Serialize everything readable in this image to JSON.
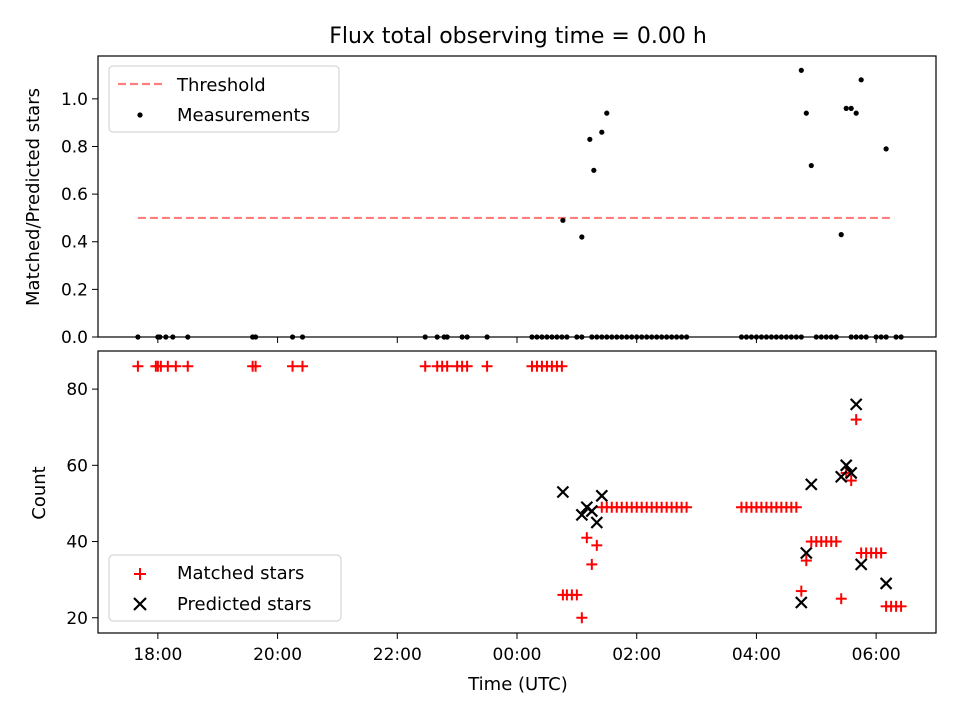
{
  "chart_data": [
    {
      "type": "scatter",
      "title": "Flux total observing time = 0.00 h",
      "xlabel": "",
      "ylabel": "Matched/Predicted stars",
      "xlim": [
        "17:00",
        "07:00"
      ],
      "ylim": [
        0,
        1.18
      ],
      "yticks": [
        "0.0",
        "0.2",
        "0.4",
        "0.6",
        "0.8",
        "1.0"
      ],
      "ytick_values": [
        0,
        0.2,
        0.4,
        0.6,
        0.8,
        1.0
      ],
      "xtick_values": [
        "18:00",
        "20:00",
        "22:00",
        "00:00",
        "02:00",
        "04:00",
        "06:00"
      ],
      "legend": {
        "placement": "upper-left",
        "entries": [
          "Threshold",
          "Measurements"
        ]
      },
      "threshold": {
        "name": "Threshold",
        "value": 0.5,
        "x_range": [
          "17:40",
          "06:18"
        ],
        "color": "#ff7f7f",
        "style": "dashed"
      },
      "series": [
        {
          "name": "Measurements",
          "color": "#000000",
          "marker": "dot",
          "x": [
            "17:40",
            "18:00",
            "18:02",
            "18:08",
            "18:15",
            "18:30",
            "19:35",
            "19:38",
            "20:15",
            "20:25",
            "22:28",
            "22:40",
            "22:47",
            "22:50",
            "23:05",
            "23:10",
            "23:30",
            "00:15",
            "00:20",
            "00:25",
            "00:30",
            "00:35",
            "00:40",
            "00:45",
            "00:50",
            "01:00",
            "01:05",
            "01:15",
            "01:20",
            "01:25",
            "01:30",
            "01:35",
            "01:40",
            "01:45",
            "01:50",
            "01:55",
            "02:00",
            "02:05",
            "02:10",
            "02:15",
            "02:20",
            "02:25",
            "02:30",
            "02:35",
            "02:40",
            "02:45",
            "02:50",
            "03:45",
            "03:50",
            "03:55",
            "04:00",
            "04:05",
            "04:10",
            "04:15",
            "04:20",
            "04:25",
            "04:30",
            "04:35",
            "04:40",
            "04:45",
            "05:00",
            "05:05",
            "05:10",
            "05:15",
            "05:20",
            "05:35",
            "05:40",
            "05:45",
            "05:50",
            "06:00",
            "06:05",
            "06:10",
            "06:20",
            "06:25",
            "00:46",
            "01:05",
            "01:13",
            "01:17",
            "01:25",
            "01:30",
            "04:45",
            "04:50",
            "04:55",
            "05:25",
            "05:30",
            "05:35",
            "05:40",
            "05:45",
            "06:10"
          ],
          "y": [
            0,
            0,
            0,
            0,
            0,
            0,
            0,
            0,
            0,
            0,
            0,
            0,
            0,
            0,
            0,
            0,
            0,
            0,
            0,
            0,
            0,
            0,
            0,
            0,
            0,
            0,
            0,
            0,
            0,
            0,
            0,
            0,
            0,
            0,
            0,
            0,
            0,
            0,
            0,
            0,
            0,
            0,
            0,
            0,
            0,
            0,
            0,
            0,
            0,
            0,
            0,
            0,
            0,
            0,
            0,
            0,
            0,
            0,
            0,
            0,
            0,
            0,
            0,
            0,
            0,
            0,
            0,
            0,
            0,
            0,
            0,
            0,
            0,
            0,
            0.49,
            0.42,
            0.83,
            0.7,
            0.86,
            0.94,
            1.12,
            0.94,
            0.72,
            0.43,
            0.96,
            0.96,
            0.94,
            1.08,
            0.79
          ]
        }
      ]
    },
    {
      "type": "scatter",
      "title": "",
      "xlabel": "Time (UTC)",
      "ylabel": "Count",
      "xlim": [
        "17:00",
        "07:00"
      ],
      "ylim": [
        16,
        90
      ],
      "yticks": [
        "20",
        "40",
        "60",
        "80"
      ],
      "ytick_values": [
        20,
        40,
        60,
        80
      ],
      "xticks": [
        "18:00",
        "20:00",
        "22:00",
        "00:00",
        "02:00",
        "04:00",
        "06:00"
      ],
      "legend": {
        "placement": "lower-left",
        "entries": [
          "Matched stars",
          "Predicted stars"
        ]
      },
      "series": [
        {
          "name": "Matched stars",
          "color": "#ff0000",
          "marker": "plus",
          "x": [
            "17:40",
            "17:58",
            "18:00",
            "18:03",
            "18:10",
            "18:18",
            "18:30",
            "19:35",
            "19:38",
            "20:15",
            "20:25",
            "22:28",
            "22:40",
            "22:45",
            "22:50",
            "23:00",
            "23:05",
            "23:10",
            "23:30",
            "00:15",
            "00:20",
            "00:25",
            "00:30",
            "00:35",
            "00:40",
            "00:45",
            "00:46",
            "00:50",
            "00:55",
            "01:00",
            "01:05",
            "01:10",
            "01:15",
            "01:20",
            "01:25",
            "01:30",
            "01:35",
            "01:40",
            "01:45",
            "01:50",
            "01:55",
            "02:00",
            "02:05",
            "02:10",
            "02:15",
            "02:20",
            "02:25",
            "02:30",
            "02:35",
            "02:40",
            "02:45",
            "02:50",
            "03:45",
            "03:50",
            "03:55",
            "04:00",
            "04:05",
            "04:10",
            "04:15",
            "04:20",
            "04:25",
            "04:30",
            "04:35",
            "04:40",
            "04:45",
            "04:50",
            "04:55",
            "05:00",
            "05:05",
            "05:10",
            "05:15",
            "05:20",
            "05:25",
            "05:30",
            "05:35",
            "05:40",
            "05:45",
            "05:50",
            "05:55",
            "06:00",
            "06:05",
            "06:10",
            "06:15",
            "06:20",
            "06:25"
          ],
          "y": [
            86,
            86,
            86,
            86,
            86,
            86,
            86,
            86,
            86,
            86,
            86,
            86,
            86,
            86,
            86,
            86,
            86,
            86,
            86,
            86,
            86,
            86,
            86,
            86,
            86,
            86,
            26,
            26,
            26,
            26,
            20,
            41,
            34,
            39,
            49,
            49,
            49,
            49,
            49,
            49,
            49,
            49,
            49,
            49,
            49,
            49,
            49,
            49,
            49,
            49,
            49,
            49,
            49,
            49,
            49,
            49,
            49,
            49,
            49,
            49,
            49,
            49,
            49,
            49,
            27,
            35,
            40,
            40,
            40,
            40,
            40,
            40,
            25,
            58,
            56,
            72,
            37,
            37,
            37,
            37,
            37,
            23,
            23,
            23,
            23
          ]
        },
        {
          "name": "Predicted stars",
          "color": "#000000",
          "marker": "x",
          "x": [
            "00:46",
            "01:05",
            "01:10",
            "01:15",
            "01:20",
            "01:25",
            "04:45",
            "04:50",
            "04:55",
            "05:25",
            "05:30",
            "05:35",
            "05:40",
            "05:45",
            "06:10"
          ],
          "y": [
            53,
            47,
            49,
            48,
            45,
            52,
            24,
            37,
            55,
            57,
            60,
            58,
            76,
            34,
            29
          ]
        }
      ]
    }
  ]
}
